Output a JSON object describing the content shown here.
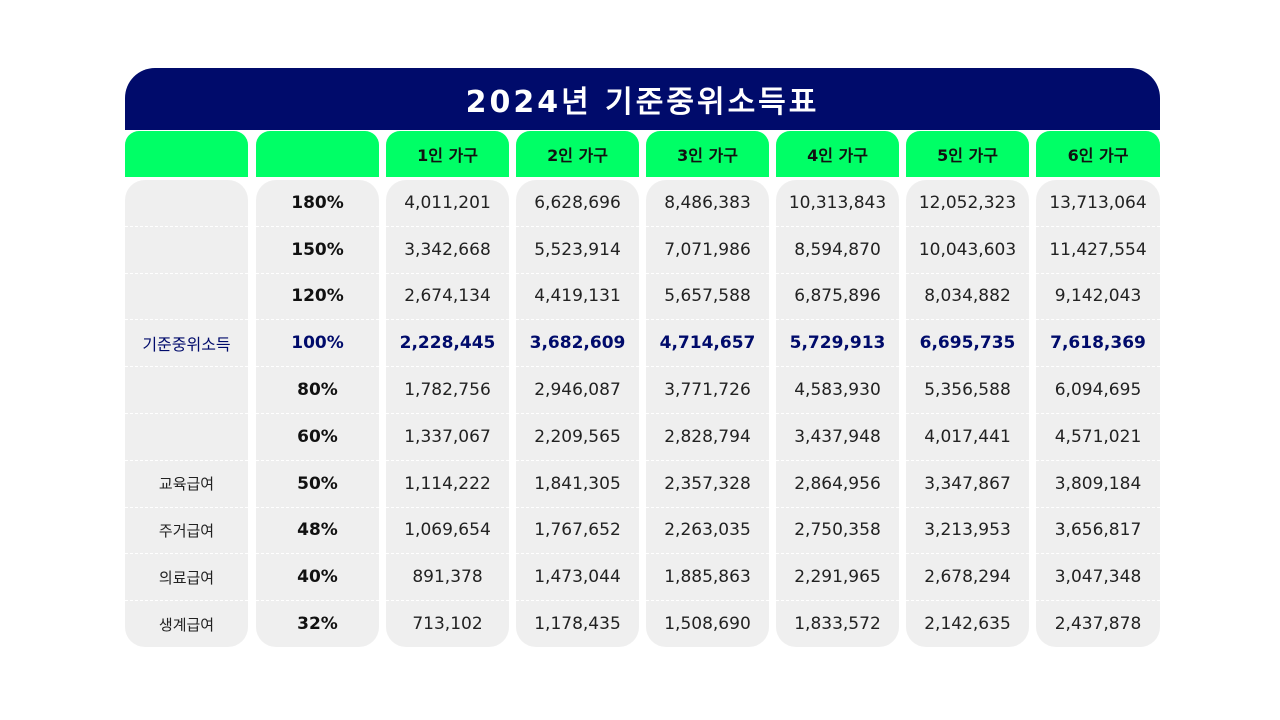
{
  "title": "2024년 기준중위소득표",
  "row_labels": [
    "",
    "",
    "",
    "기준중위소득",
    "",
    "",
    "교육급여",
    "주거급여",
    "의료급여",
    "생계급여"
  ],
  "percents": [
    "180%",
    "150%",
    "120%",
    "100%",
    "80%",
    "60%",
    "50%",
    "48%",
    "40%",
    "32%"
  ],
  "highlight_row": 3,
  "colors": {
    "title_bg": "#000b6b",
    "header_bg": "#00ff66",
    "cell_bg": "#efefef",
    "highlight_text": "#000b6b"
  },
  "households": [
    {
      "label": "1인 가구",
      "values": [
        "4,011,201",
        "3,342,668",
        "2,674,134",
        "2,228,445",
        "1,782,756",
        "1,337,067",
        "1,114,222",
        "1,069,654",
        "891,378",
        "713,102"
      ]
    },
    {
      "label": "2인 가구",
      "values": [
        "6,628,696",
        "5,523,914",
        "4,419,131",
        "3,682,609",
        "2,946,087",
        "2,209,565",
        "1,841,305",
        "1,767,652",
        "1,473,044",
        "1,178,435"
      ]
    },
    {
      "label": "3인 가구",
      "values": [
        "8,486,383",
        "7,071,986",
        "5,657,588",
        "4,714,657",
        "3,771,726",
        "2,828,794",
        "2,357,328",
        "2,263,035",
        "1,885,863",
        "1,508,690"
      ]
    },
    {
      "label": "4인 가구",
      "values": [
        "10,313,843",
        "8,594,870",
        "6,875,896",
        "5,729,913",
        "4,583,930",
        "3,437,948",
        "2,864,956",
        "2,750,358",
        "2,291,965",
        "1,833,572"
      ]
    },
    {
      "label": "5인 가구",
      "values": [
        "12,052,323",
        "10,043,603",
        "8,034,882",
        "6,695,735",
        "5,356,588",
        "4,017,441",
        "3,347,867",
        "3,213,953",
        "2,678,294",
        "2,142,635"
      ]
    },
    {
      "label": "6인 가구",
      "values": [
        "13,713,064",
        "11,427,554",
        "9,142,043",
        "7,618,369",
        "6,094,695",
        "4,571,021",
        "3,809,184",
        "3,656,817",
        "3,047,348",
        "2,437,878"
      ]
    }
  ]
}
